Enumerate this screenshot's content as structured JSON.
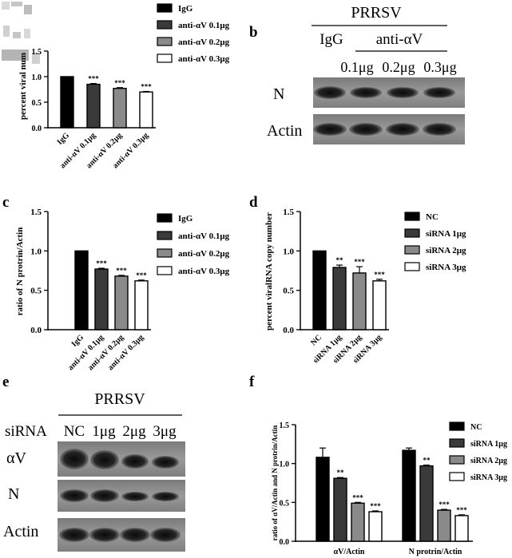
{
  "panels": {
    "a": {
      "letter": ""
    },
    "b": {
      "letter": "b",
      "header": "PRRSV",
      "group_igg": "IgG",
      "group_anti": "anti-αV",
      "doses": [
        "0.1μg",
        "0.2μg",
        "0.3μg"
      ],
      "rows": [
        "N",
        "Actin"
      ]
    },
    "c": {
      "letter": "c"
    },
    "d": {
      "letter": "d"
    },
    "e": {
      "letter": "e",
      "header": "PRRSV",
      "row_label": "siRNA",
      "lanes": [
        "NC",
        "1μg",
        "2μg",
        "3μg"
      ],
      "rows": [
        "αV",
        "N",
        "Actin"
      ]
    },
    "f": {
      "letter": "f"
    }
  },
  "chart_data": [
    {
      "id": "a",
      "type": "bar",
      "ylabel": "percent viral num",
      "ylim": [
        0,
        1.5
      ],
      "yticks": [
        "0.0",
        "0.5",
        "1.0",
        "1.5"
      ],
      "categories": [
        "IgG",
        "anti-αV 0.1μg",
        "anti-αV 0.2μg",
        "anti-αV 0.3μg"
      ],
      "values": [
        1.0,
        0.85,
        0.77,
        0.7
      ],
      "errors": [
        0,
        0.015,
        0.015,
        0.01
      ],
      "significance": [
        "",
        "***",
        "***",
        "***"
      ],
      "legend": [
        "IgG",
        "anti-αV 0.1μg",
        "anti-αV 0.2μg",
        "anti-αV 0.3μg"
      ],
      "fills": [
        "#000000",
        "#3a3a3a",
        "#8a8a8a",
        "#ffffff"
      ]
    },
    {
      "id": "c",
      "type": "bar",
      "ylabel": "ratio of N protrin/Actin",
      "ylim": [
        0,
        1.5
      ],
      "yticks": [
        "0.0",
        "0.5",
        "1.0",
        "1.5"
      ],
      "categories": [
        "IgG",
        "anti-αV 0.1μg",
        "anti-αV 0.2μg",
        "anti-αV 0.3μg"
      ],
      "values": [
        1.0,
        0.77,
        0.68,
        0.62
      ],
      "errors": [
        0,
        0.01,
        0.01,
        0.01
      ],
      "significance": [
        "",
        "***",
        "***",
        "***"
      ],
      "legend": [
        "IgG",
        "anti-αV 0.1μg",
        "anti-αV 0.2μg",
        "anti-αV 0.3μg"
      ],
      "fills": [
        "#000000",
        "#3a3a3a",
        "#8a8a8a",
        "#ffffff"
      ]
    },
    {
      "id": "d",
      "type": "bar",
      "ylabel": "percent viralRNA copy number",
      "ylim": [
        0,
        1.5
      ],
      "yticks": [
        "0.0",
        "0.5",
        "1.0",
        "1.5"
      ],
      "categories": [
        "NC",
        "siRNA 1μg",
        "siRNA 2μg",
        "siRNA 3μg"
      ],
      "values": [
        1.0,
        0.79,
        0.72,
        0.62
      ],
      "errors": [
        0,
        0.03,
        0.08,
        0.02
      ],
      "significance": [
        "",
        "**",
        "***",
        "***"
      ],
      "legend": [
        "NC",
        "siRNA 1μg",
        "siRNA 2μg",
        "siRNA 3μg"
      ],
      "fills": [
        "#000000",
        "#3a3a3a",
        "#8a8a8a",
        "#ffffff"
      ]
    },
    {
      "id": "f",
      "type": "bar",
      "ylabel": "ratio of αV/Actin and N protrin/Actin",
      "ylim": [
        0,
        1.5
      ],
      "yticks": [
        "0.0",
        "0.5",
        "1.0",
        "1.5"
      ],
      "groups": [
        "αV/Actin",
        "N protrin/Actin"
      ],
      "series": [
        {
          "name": "NC",
          "values": [
            1.08,
            1.17
          ],
          "errors": [
            0.12,
            0.03
          ],
          "significance": [
            "",
            ""
          ]
        },
        {
          "name": "siRNA 1μg",
          "values": [
            0.81,
            0.97
          ],
          "errors": [
            0.01,
            0.01
          ],
          "significance": [
            "**",
            "**"
          ]
        },
        {
          "name": "siRNA 2μg",
          "values": [
            0.49,
            0.4
          ],
          "errors": [
            0.01,
            0.01
          ],
          "significance": [
            "***",
            "***"
          ]
        },
        {
          "name": "siRNA 3μg",
          "values": [
            0.38,
            0.33
          ],
          "errors": [
            0.01,
            0.01
          ],
          "significance": [
            "***",
            "***"
          ]
        }
      ],
      "fills": [
        "#000000",
        "#3a3a3a",
        "#8a8a8a",
        "#ffffff"
      ]
    }
  ]
}
